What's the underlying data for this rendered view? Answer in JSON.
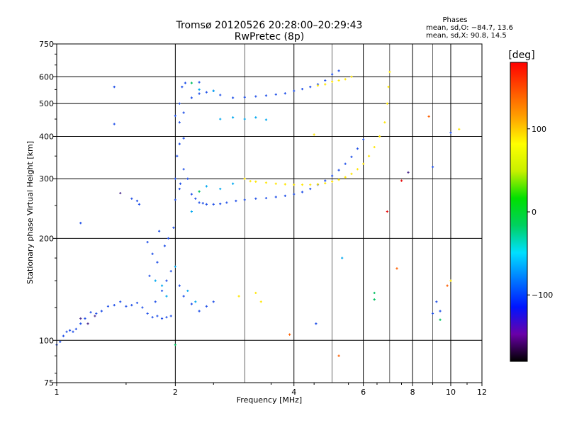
{
  "chart_data": {
    "type": "scatter",
    "title": "Tromsø 20120526 20:28:00–20:29:43",
    "subtitle": "RwPretec (8p)",
    "xlabel": "Frequency [MHz]",
    "ylabel": "Stationary phase Virtual Height [km]",
    "x_scale": "log",
    "y_scale": "log",
    "xlim": [
      1,
      12
    ],
    "ylim": [
      75,
      750
    ],
    "grid": true,
    "x_ticks": [
      1,
      2,
      4,
      6,
      8,
      10,
      12
    ],
    "x_tick_labels": [
      "1",
      "2",
      "4",
      "6",
      "8",
      "10",
      "12"
    ],
    "y_ticks": [
      75,
      100,
      200,
      300,
      400,
      500,
      600,
      750
    ],
    "y_tick_labels": [
      "75",
      "100",
      "200",
      "300",
      "400",
      "500",
      "600",
      "750"
    ],
    "x_minor_gridlines": [
      3,
      5,
      7,
      9
    ],
    "stats": {
      "title": "Phases",
      "line1": "mean, sd,O: −84.7, 13.6",
      "line2": "mean, sd,X:  90.8, 14.5"
    },
    "colorbar": {
      "label": "[deg]",
      "min": -180,
      "max": 180,
      "ticks": [
        100,
        0,
        -100
      ],
      "tick_labels": [
        "100",
        "0",
        "−100"
      ],
      "colors": [
        "#000000",
        "#6a00a8",
        "#0014ff",
        "#0078ff",
        "#00e0ff",
        "#00d060",
        "#00e000",
        "#c8f000",
        "#ffff00",
        "#ffa000",
        "#ff5000",
        "#ff0000"
      ]
    },
    "series": [
      {
        "color": "#2050e8",
        "points": [
          [
            1.0,
            97
          ],
          [
            1.02,
            99
          ],
          [
            1.04,
            103
          ],
          [
            1.06,
            106
          ],
          [
            1.08,
            107
          ],
          [
            1.1,
            106
          ],
          [
            1.12,
            108
          ],
          [
            1.15,
            112
          ],
          [
            1.18,
            116
          ],
          [
            1.22,
            121
          ],
          [
            1.26,
            120
          ],
          [
            1.3,
            122
          ],
          [
            1.35,
            126
          ],
          [
            1.4,
            127
          ],
          [
            1.45,
            130
          ],
          [
            1.5,
            126
          ],
          [
            1.55,
            127
          ],
          [
            1.6,
            129
          ],
          [
            1.65,
            125
          ],
          [
            1.7,
            120
          ],
          [
            1.75,
            117
          ],
          [
            1.8,
            118
          ],
          [
            1.85,
            116
          ],
          [
            1.9,
            117
          ],
          [
            1.95,
            118
          ],
          [
            1.78,
            130
          ],
          [
            1.85,
            140
          ],
          [
            1.9,
            150
          ],
          [
            1.95,
            160
          ],
          [
            1.8,
            170
          ],
          [
            1.75,
            180
          ],
          [
            1.88,
            190
          ],
          [
            1.92,
            200
          ],
          [
            1.82,
            210
          ],
          [
            1.98,
            215
          ],
          [
            1.7,
            195
          ],
          [
            1.72,
            155
          ],
          [
            2.05,
            145
          ],
          [
            2.1,
            135
          ],
          [
            2.2,
            128
          ],
          [
            2.3,
            122
          ],
          [
            2.4,
            126
          ],
          [
            2.5,
            130
          ],
          [
            2.0,
            260
          ],
          [
            2.05,
            280
          ],
          [
            2.0,
            300
          ],
          [
            2.1,
            320
          ],
          [
            2.02,
            350
          ],
          [
            2.05,
            380
          ],
          [
            2.1,
            395
          ],
          [
            2.06,
            290
          ],
          [
            2.15,
            300
          ],
          [
            2.2,
            270
          ],
          [
            2.25,
            262
          ],
          [
            2.3,
            255
          ],
          [
            2.35,
            254
          ],
          [
            2.4,
            252
          ],
          [
            2.5,
            252
          ],
          [
            2.6,
            253
          ],
          [
            2.7,
            255
          ],
          [
            2.85,
            258
          ],
          [
            3.0,
            260
          ],
          [
            3.2,
            262
          ],
          [
            3.4,
            263
          ],
          [
            3.6,
            265
          ],
          [
            3.8,
            267
          ],
          [
            4.0,
            270
          ],
          [
            4.2,
            274
          ],
          [
            4.4,
            280
          ],
          [
            4.6,
            288
          ],
          [
            4.8,
            296
          ],
          [
            5.0,
            306
          ],
          [
            5.2,
            318
          ],
          [
            5.4,
            332
          ],
          [
            5.6,
            348
          ],
          [
            5.8,
            368
          ],
          [
            6.0,
            392
          ],
          [
            2.0,
            460
          ],
          [
            2.1,
            470
          ],
          [
            2.05,
            500
          ],
          [
            2.2,
            520
          ],
          [
            2.3,
            535
          ],
          [
            2.4,
            540
          ],
          [
            2.5,
            545
          ],
          [
            2.6,
            530
          ],
          [
            2.8,
            520
          ],
          [
            3.0,
            522
          ],
          [
            3.2,
            525
          ],
          [
            3.4,
            528
          ],
          [
            3.6,
            532
          ],
          [
            3.8,
            536
          ],
          [
            4.0,
            545
          ],
          [
            4.2,
            552
          ],
          [
            4.4,
            560
          ],
          [
            4.6,
            570
          ],
          [
            4.8,
            585
          ],
          [
            5.0,
            610
          ],
          [
            5.2,
            625
          ],
          [
            1.55,
            262
          ],
          [
            1.6,
            258
          ],
          [
            1.62,
            252
          ],
          [
            2.05,
            440
          ],
          [
            2.08,
            560
          ],
          [
            2.12,
            575
          ],
          [
            2.3,
            578
          ],
          [
            1.15,
            222
          ],
          [
            1.4,
            560
          ],
          [
            1.4,
            435
          ],
          [
            4.55,
            112
          ],
          [
            9.0,
            325
          ],
          [
            9.2,
            130
          ],
          [
            9.4,
            122
          ],
          [
            9.0,
            120
          ],
          [
            10.0,
            410
          ]
        ]
      },
      {
        "color": "#00a8f0",
        "points": [
          [
            1.78,
            150
          ],
          [
            1.85,
            145
          ],
          [
            1.9,
            135
          ],
          [
            2.0,
            165
          ],
          [
            2.15,
            140
          ],
          [
            2.25,
            130
          ],
          [
            2.6,
            450
          ],
          [
            2.8,
            455
          ],
          [
            3.0,
            450
          ],
          [
            3.2,
            455
          ],
          [
            3.4,
            448
          ],
          [
            2.4,
            285
          ],
          [
            2.6,
            280
          ],
          [
            2.8,
            290
          ],
          [
            5.3,
            175
          ],
          [
            2.2,
            240
          ],
          [
            2.3,
            550
          ],
          [
            2.5,
            545
          ]
        ]
      },
      {
        "color": "#ffe600",
        "points": [
          [
            3.0,
            300
          ],
          [
            3.1,
            295
          ],
          [
            3.2,
            294
          ],
          [
            3.4,
            292
          ],
          [
            3.6,
            290
          ],
          [
            3.8,
            289
          ],
          [
            4.0,
            288
          ],
          [
            4.2,
            288
          ],
          [
            4.4,
            288
          ],
          [
            4.6,
            289
          ],
          [
            4.8,
            291
          ],
          [
            5.0,
            294
          ],
          [
            5.2,
            298
          ],
          [
            5.4,
            303
          ],
          [
            5.6,
            310
          ],
          [
            5.8,
            320
          ],
          [
            6.0,
            332
          ],
          [
            6.2,
            350
          ],
          [
            6.4,
            372
          ],
          [
            6.6,
            400
          ],
          [
            6.8,
            440
          ],
          [
            6.9,
            500
          ],
          [
            6.95,
            560
          ],
          [
            7.0,
            620
          ],
          [
            5.0,
            580
          ],
          [
            5.2,
            585
          ],
          [
            5.4,
            590
          ],
          [
            5.6,
            600
          ],
          [
            4.6,
            565
          ],
          [
            4.8,
            570
          ],
          [
            3.2,
            138
          ],
          [
            3.3,
            130
          ],
          [
            2.9,
            135
          ],
          [
            10.0,
            150
          ],
          [
            10.5,
            420
          ],
          [
            4.5,
            405
          ]
        ]
      },
      {
        "color": "#00c060",
        "points": [
          [
            2.0,
            97
          ],
          [
            2.2,
            575
          ],
          [
            2.3,
            275
          ],
          [
            6.4,
            138
          ],
          [
            6.4,
            132
          ],
          [
            9.4,
            115
          ]
        ]
      },
      {
        "color": "#ff6000",
        "points": [
          [
            7.3,
            163
          ],
          [
            8.8,
            458
          ],
          [
            9.8,
            145
          ],
          [
            5.2,
            90
          ],
          [
            3.9,
            104
          ]
        ]
      },
      {
        "color": "#e81010",
        "points": [
          [
            6.9,
            240
          ],
          [
            7.5,
            296
          ]
        ]
      },
      {
        "color": "#503090",
        "points": [
          [
            1.15,
            116
          ],
          [
            1.2,
            112
          ],
          [
            1.25,
            118
          ],
          [
            7.8,
            313
          ],
          [
            1.45,
            272
          ]
        ]
      }
    ]
  }
}
